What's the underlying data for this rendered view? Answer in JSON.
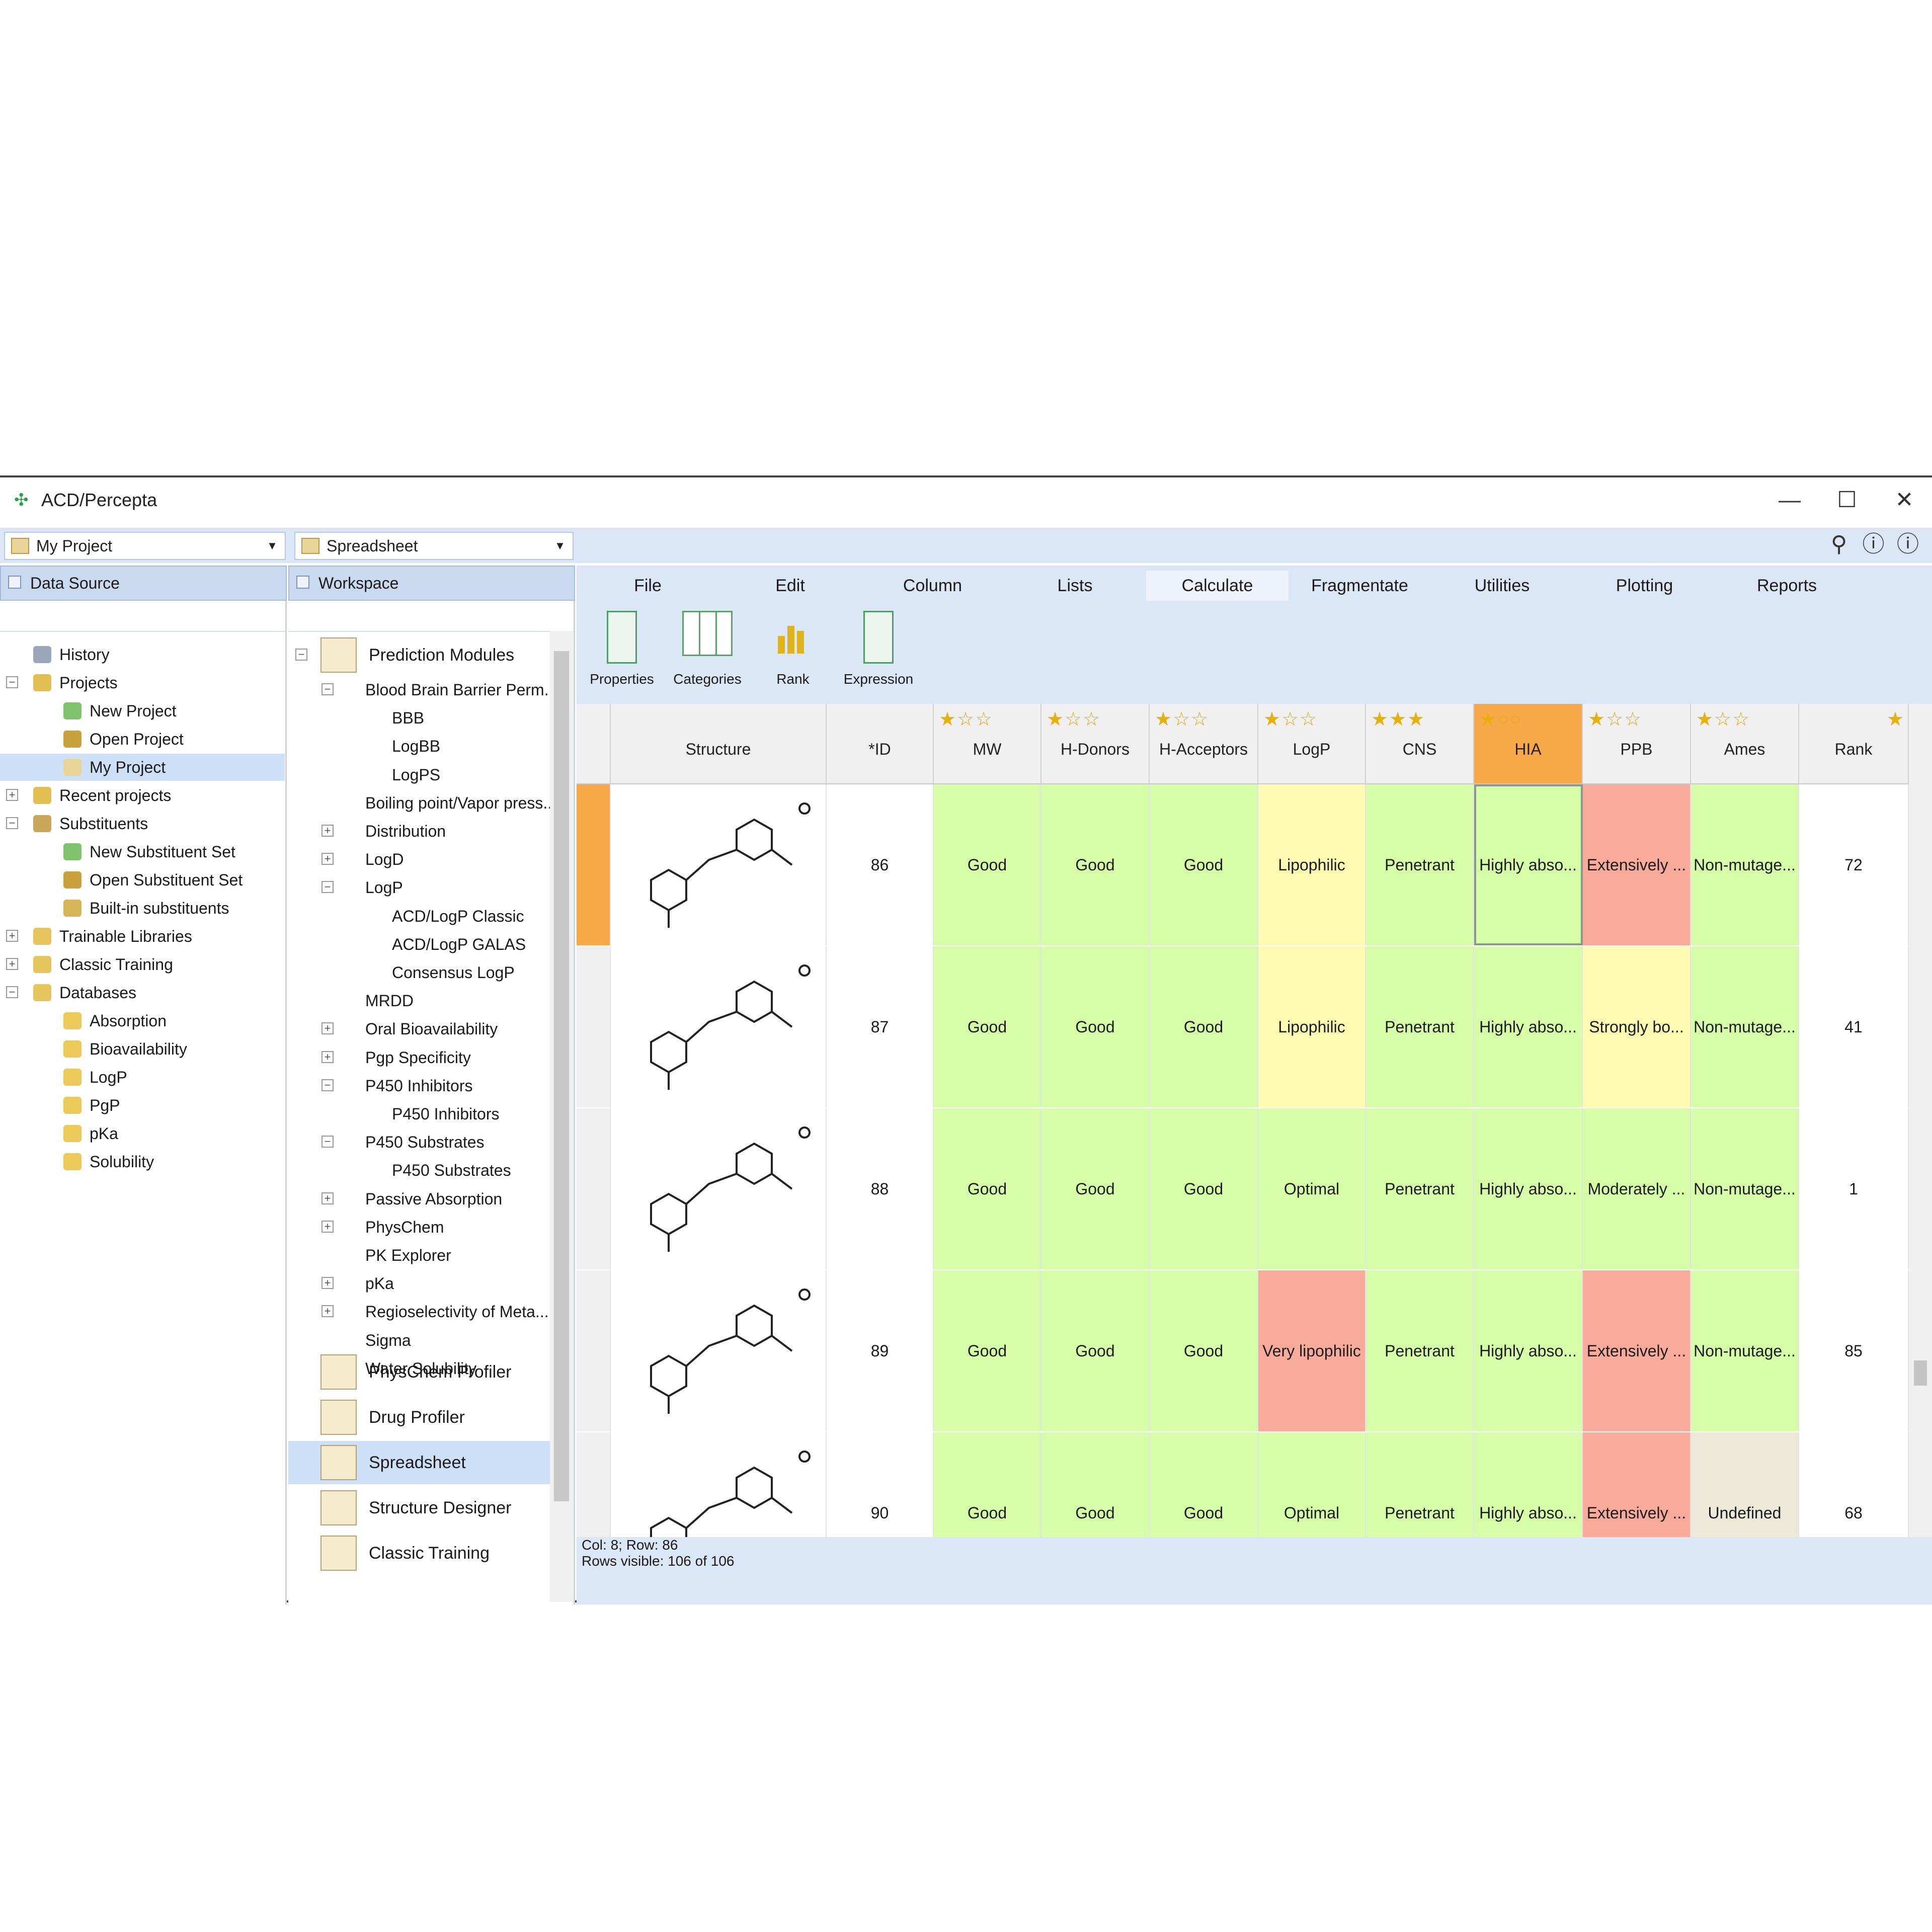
{
  "window": {
    "title": "ACD/Percepta",
    "minimize": "—",
    "maximize": "☐",
    "close": "✕"
  },
  "toolbar": {
    "project_combo": "My Project",
    "workspace_combo": "Spreadsheet"
  },
  "panels": {
    "data_source": "Data Source",
    "workspace": "Workspace"
  },
  "datasource_tree": [
    {
      "label": "History",
      "indent": 1,
      "icon": "history-icon",
      "exp": ""
    },
    {
      "label": "Projects",
      "indent": 1,
      "icon": "folder-icon",
      "exp": "−"
    },
    {
      "label": "New Project",
      "indent": 2,
      "icon": "new-project-icon",
      "exp": ""
    },
    {
      "label": "Open Project",
      "indent": 2,
      "icon": "open-icon",
      "exp": ""
    },
    {
      "label": "My Project",
      "indent": 2,
      "icon": "project-icon",
      "exp": "",
      "selected": true
    },
    {
      "label": "Recent projects",
      "indent": 1,
      "icon": "folder-icon",
      "exp": "+"
    },
    {
      "label": "Substituents",
      "indent": 1,
      "icon": "substituents-icon",
      "exp": "−"
    },
    {
      "label": "New Substituent Set",
      "indent": 2,
      "icon": "new-set-icon",
      "exp": ""
    },
    {
      "label": "Open Substituent Set",
      "indent": 2,
      "icon": "open-icon",
      "exp": ""
    },
    {
      "label": "Built-in substituents",
      "indent": 2,
      "icon": "builtin-icon",
      "exp": ""
    },
    {
      "label": "Trainable Libraries",
      "indent": 1,
      "icon": "database-icon",
      "exp": "+"
    },
    {
      "label": "Classic Training",
      "indent": 1,
      "icon": "database-icon",
      "exp": "+"
    },
    {
      "label": "Databases",
      "indent": 1,
      "icon": "database-icon",
      "exp": "−"
    },
    {
      "label": "Absorption",
      "indent": 2,
      "icon": "db-item-icon",
      "exp": ""
    },
    {
      "label": "Bioavailability",
      "indent": 2,
      "icon": "db-item-icon",
      "exp": ""
    },
    {
      "label": "LogP",
      "indent": 2,
      "icon": "db-item-icon",
      "exp": ""
    },
    {
      "label": "PgP",
      "indent": 2,
      "icon": "db-item-icon",
      "exp": ""
    },
    {
      "label": "pKa",
      "indent": 2,
      "icon": "db-item-icon",
      "exp": ""
    },
    {
      "label": "Solubility",
      "indent": 2,
      "icon": "db-item-icon",
      "exp": ""
    }
  ],
  "workspace_tree": [
    {
      "label": "Blood Brain Barrier Perm...",
      "indent": 1,
      "exp": "−"
    },
    {
      "label": "BBB",
      "indent": 2,
      "exp": ""
    },
    {
      "label": "LogBB",
      "indent": 2,
      "exp": ""
    },
    {
      "label": "LogPS",
      "indent": 2,
      "exp": ""
    },
    {
      "label": "Boiling point/Vapor press...",
      "indent": 1,
      "exp": ""
    },
    {
      "label": "Distribution",
      "indent": 1,
      "exp": "+"
    },
    {
      "label": "LogD",
      "indent": 1,
      "exp": "+"
    },
    {
      "label": "LogP",
      "indent": 1,
      "exp": "−"
    },
    {
      "label": "ACD/LogP Classic",
      "indent": 2,
      "exp": ""
    },
    {
      "label": "ACD/LogP GALAS",
      "indent": 2,
      "exp": ""
    },
    {
      "label": "Consensus LogP",
      "indent": 2,
      "exp": ""
    },
    {
      "label": "MRDD",
      "indent": 1,
      "exp": ""
    },
    {
      "label": "Oral Bioavailability",
      "indent": 1,
      "exp": "+"
    },
    {
      "label": "Pgp Specificity",
      "indent": 1,
      "exp": "+"
    },
    {
      "label": "P450 Inhibitors",
      "indent": 1,
      "exp": "−"
    },
    {
      "label": "P450 Inhibitors",
      "indent": 2,
      "exp": ""
    },
    {
      "label": "P450 Substrates",
      "indent": 1,
      "exp": "−"
    },
    {
      "label": "P450 Substrates",
      "indent": 2,
      "exp": ""
    },
    {
      "label": "Passive Absorption",
      "indent": 1,
      "exp": "+"
    },
    {
      "label": "PhysChem",
      "indent": 1,
      "exp": "+"
    },
    {
      "label": "PK Explorer",
      "indent": 1,
      "exp": ""
    },
    {
      "label": "pKa",
      "indent": 1,
      "exp": "+"
    },
    {
      "label": "Regioselectivity of Meta...",
      "indent": 1,
      "exp": "+"
    },
    {
      "label": "Sigma",
      "indent": 1,
      "exp": ""
    },
    {
      "label": "Water Solubility",
      "indent": 1,
      "exp": "+"
    }
  ],
  "workspace_modules": {
    "prediction": "Prediction Modules",
    "physchem_profiler": "PhysChem Profiler",
    "drug_profiler": "Drug Profiler",
    "spreadsheet": "Spreadsheet",
    "structure_designer": "Structure Designer",
    "classic_training": "Classic Training"
  },
  "menu": [
    "File",
    "Edit",
    "Column",
    "Lists",
    "Calculate",
    "Fragmentate",
    "Utilities",
    "Plotting",
    "Reports"
  ],
  "menu_active": "Calculate",
  "ribbon": [
    "Properties",
    "Categories",
    "Rank",
    "Expression"
  ],
  "columns": [
    "Structure",
    "*ID",
    "MW",
    "H-Donors",
    "H-Acceptors",
    "LogP",
    "CNS",
    "HIA",
    "PPB",
    "Ames",
    "Rank"
  ],
  "column_stars": [
    "",
    "",
    "★☆☆",
    "★☆☆",
    "★☆☆",
    "★☆☆",
    "★★★",
    "★○○",
    "★☆☆",
    "★☆☆",
    ""
  ],
  "rows": [
    {
      "id": "86",
      "cells": [
        "Good",
        "Good",
        "Good",
        "Lipophilic",
        "Penetrant",
        "Highly abso...",
        "Extensively ...",
        "Non-mutage..."
      ],
      "rank": "72",
      "selected": true
    },
    {
      "id": "87",
      "cells": [
        "Good",
        "Good",
        "Good",
        "Lipophilic",
        "Penetrant",
        "Highly abso...",
        "Strongly bo...",
        "Non-mutage..."
      ],
      "rank": "41"
    },
    {
      "id": "88",
      "cells": [
        "Good",
        "Good",
        "Good",
        "Optimal",
        "Penetrant",
        "Highly abso...",
        "Moderately ...",
        "Non-mutage..."
      ],
      "rank": "1"
    },
    {
      "id": "89",
      "cells": [
        "Good",
        "Good",
        "Good",
        "Very lipophilic",
        "Penetrant",
        "Highly abso...",
        "Extensively ...",
        "Non-mutage..."
      ],
      "rank": "85"
    },
    {
      "id": "90",
      "cells": [
        "Good",
        "Good",
        "Good",
        "Optimal",
        "Penetrant",
        "Highly abso...",
        "Extensively ...",
        "Undefined"
      ],
      "rank": "68"
    }
  ],
  "colors": {
    "good": "#d6fda8",
    "warn": "#fdfbb2",
    "bad": "#f8ab9a",
    "neutral": "#ece9d8",
    "header_selected": "#f7a849",
    "row_marker": "#f7a849"
  },
  "status": {
    "line1": "Col: 8; Row: 86",
    "line2": "Rows visible: 106 of 106"
  }
}
